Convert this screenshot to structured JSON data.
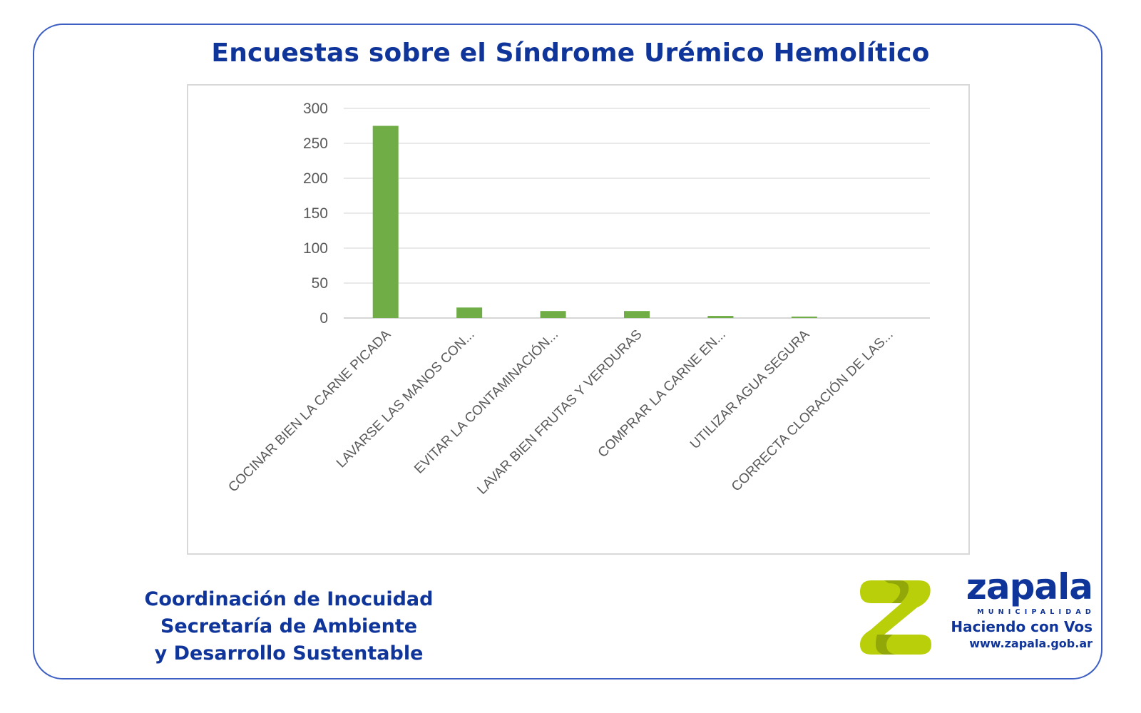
{
  "title": "Encuestas sobre el Síndrome Urémico Hemolítico",
  "chart_data": {
    "type": "bar",
    "title": "",
    "xlabel": "",
    "ylabel": "",
    "ylim": [
      0,
      300
    ],
    "yticks": [
      300,
      250,
      200,
      150,
      100,
      50,
      0
    ],
    "grid": true,
    "legend": "none",
    "bar_color": "#70ad47",
    "categories": [
      "COCINAR BIEN LA CARNE PICADA",
      "LAVARSE LAS MANOS CON...",
      "EVITAR LA CONTAMINACIÓN...",
      "LAVAR BIEN FRUTAS Y VERDURAS",
      "COMPRAR LA CARNE EN...",
      "UTILIZAR AGUA SEGURA",
      "CORRECTA CLORACIÓN DE LAS..."
    ],
    "values": [
      275,
      15,
      10,
      10,
      3,
      2,
      0
    ]
  },
  "footer": {
    "line1": "Coordinación de Inocuidad",
    "line2": "Secretaría de Ambiente",
    "line3": "y Desarrollo Sustentable"
  },
  "brand": {
    "name": "zapala",
    "sub": "MUNICIPALIDAD",
    "slogan": "Haciendo con Vos",
    "url": "www.zapala.gob.ar",
    "logo_icon": "zapala-z-logo",
    "colors": {
      "primary": "#10359a",
      "logo_green": "#b9cf0a",
      "logo_dark": "#8ea308"
    }
  }
}
